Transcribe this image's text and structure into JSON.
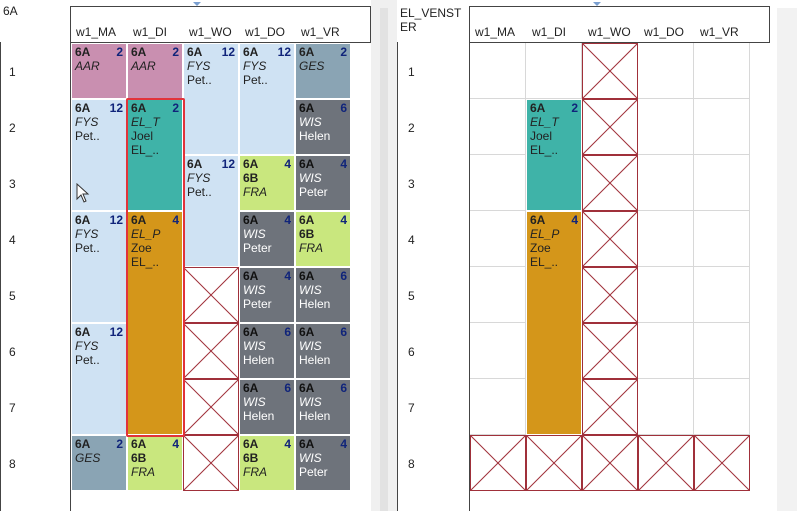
{
  "left": {
    "title": "6A",
    "days": [
      "w1_MA",
      "w1_DI",
      "w1_WO",
      "w1_DO",
      "w1_VR"
    ],
    "hours": [
      "1",
      "2",
      "3",
      "4",
      "5",
      "6",
      "7",
      "8"
    ],
    "lessons": [
      {
        "cls": "6A",
        "num": "2",
        "l2": "AAR",
        "color": "#c98fb0"
      },
      {
        "cls": "6A",
        "num": "2",
        "l2": "AAR",
        "color": "#c98fb0"
      },
      {
        "cls": "6A",
        "num": "12",
        "l2": "FYS",
        "l3": "Pet..",
        "color": "#cfe2f3"
      },
      {
        "cls": "6A",
        "num": "12",
        "l2": "FYS",
        "l3": "Pet..",
        "color": "#cfe2f3"
      },
      {
        "cls": "6A",
        "num": "2",
        "l2": "GES",
        "color": "#8aa4b4"
      },
      {
        "cls": "6A",
        "num": "12",
        "l2": "FYS",
        "l3": "Pet..",
        "color": "#cfe2f3"
      },
      {
        "cls": "6A",
        "num": "2",
        "l2": "EL_T",
        "l3": "Joel",
        "l4": "EL_..",
        "color": "#3fb3a8"
      },
      {
        "cls": "6A",
        "num": "6",
        "l2": "WIS",
        "l3": "Helen",
        "color": "#6e737b"
      },
      {
        "cls": "6A",
        "num": "12",
        "l2": "FYS",
        "l3": "Pet..",
        "color": "#cfe2f3"
      },
      {
        "cls": "6A",
        "num": "4",
        "l2": "6B",
        "l3": "FRA",
        "color": "#c9e77e"
      },
      {
        "cls": "6A",
        "num": "4",
        "l2": "WIS",
        "l3": "Peter",
        "color": "#6e737b"
      },
      {
        "cls": "6A",
        "num": "12",
        "l2": "FYS",
        "l3": "Pet..",
        "color": "#cfe2f3"
      },
      {
        "cls": "6A",
        "num": "4",
        "l2": "EL_P",
        "l3": "Zoe",
        "l4": "EL_..",
        "color": "#d4961a"
      },
      {
        "cls": "6A",
        "num": "4",
        "l2": "WIS",
        "l3": "Peter",
        "color": "#6e737b"
      },
      {
        "cls": "6A",
        "num": "4",
        "l2": "6B",
        "l3": "FRA",
        "color": "#c9e77e"
      },
      {
        "cls": "6A",
        "num": "4",
        "l2": "WIS",
        "l3": "Peter",
        "color": "#6e737b"
      },
      {
        "cls": "6A",
        "num": "6",
        "l2": "WIS",
        "l3": "Helen",
        "color": "#6e737b"
      },
      {
        "cls": "6A",
        "num": "12",
        "l2": "FYS",
        "l3": "Pet..",
        "color": "#cfe2f3"
      },
      {
        "cls": "6A",
        "num": "6",
        "l2": "WIS",
        "l3": "Helen",
        "color": "#6e737b"
      },
      {
        "cls": "6A",
        "num": "6",
        "l2": "WIS",
        "l3": "Helen",
        "color": "#6e737b"
      },
      {
        "cls": "6A",
        "num": "6",
        "l2": "WIS",
        "l3": "Helen",
        "color": "#6e737b"
      },
      {
        "cls": "6A",
        "num": "6",
        "l2": "WIS",
        "l3": "Helen",
        "color": "#6e737b"
      },
      {
        "cls": "6A",
        "num": "2",
        "l2": "GES",
        "color": "#8aa4b4"
      },
      {
        "cls": "6A",
        "num": "4",
        "l2": "6B",
        "l3": "FRA",
        "color": "#c9e77e"
      },
      {
        "cls": "6A",
        "num": "4",
        "l2": "6B",
        "l3": "FRA",
        "color": "#c9e77e"
      },
      {
        "cls": "6A",
        "num": "4",
        "l2": "WIS",
        "l3": "Peter",
        "color": "#6e737b"
      }
    ]
  },
  "right": {
    "title": "EL_VENSTER",
    "title_line1": "EL_VENST",
    "title_line2": "ER",
    "days": [
      "w1_MA",
      "w1_DI",
      "w1_WO",
      "w1_DO",
      "w1_VR"
    ],
    "hours": [
      "1",
      "2",
      "3",
      "4",
      "5",
      "6",
      "7",
      "8"
    ],
    "lessons": [
      {
        "cls": "6A",
        "num": "2",
        "l2": "EL_T",
        "l3": "Joel",
        "l4": "EL_..",
        "color": "#3fb3a8"
      },
      {
        "cls": "6A",
        "num": "4",
        "l2": "EL_P",
        "l3": "Zoe",
        "l4": "EL_..",
        "color": "#d4961a"
      }
    ]
  },
  "colors": {
    "blocked_border": "#a0303a",
    "selection": "#e2333a"
  }
}
